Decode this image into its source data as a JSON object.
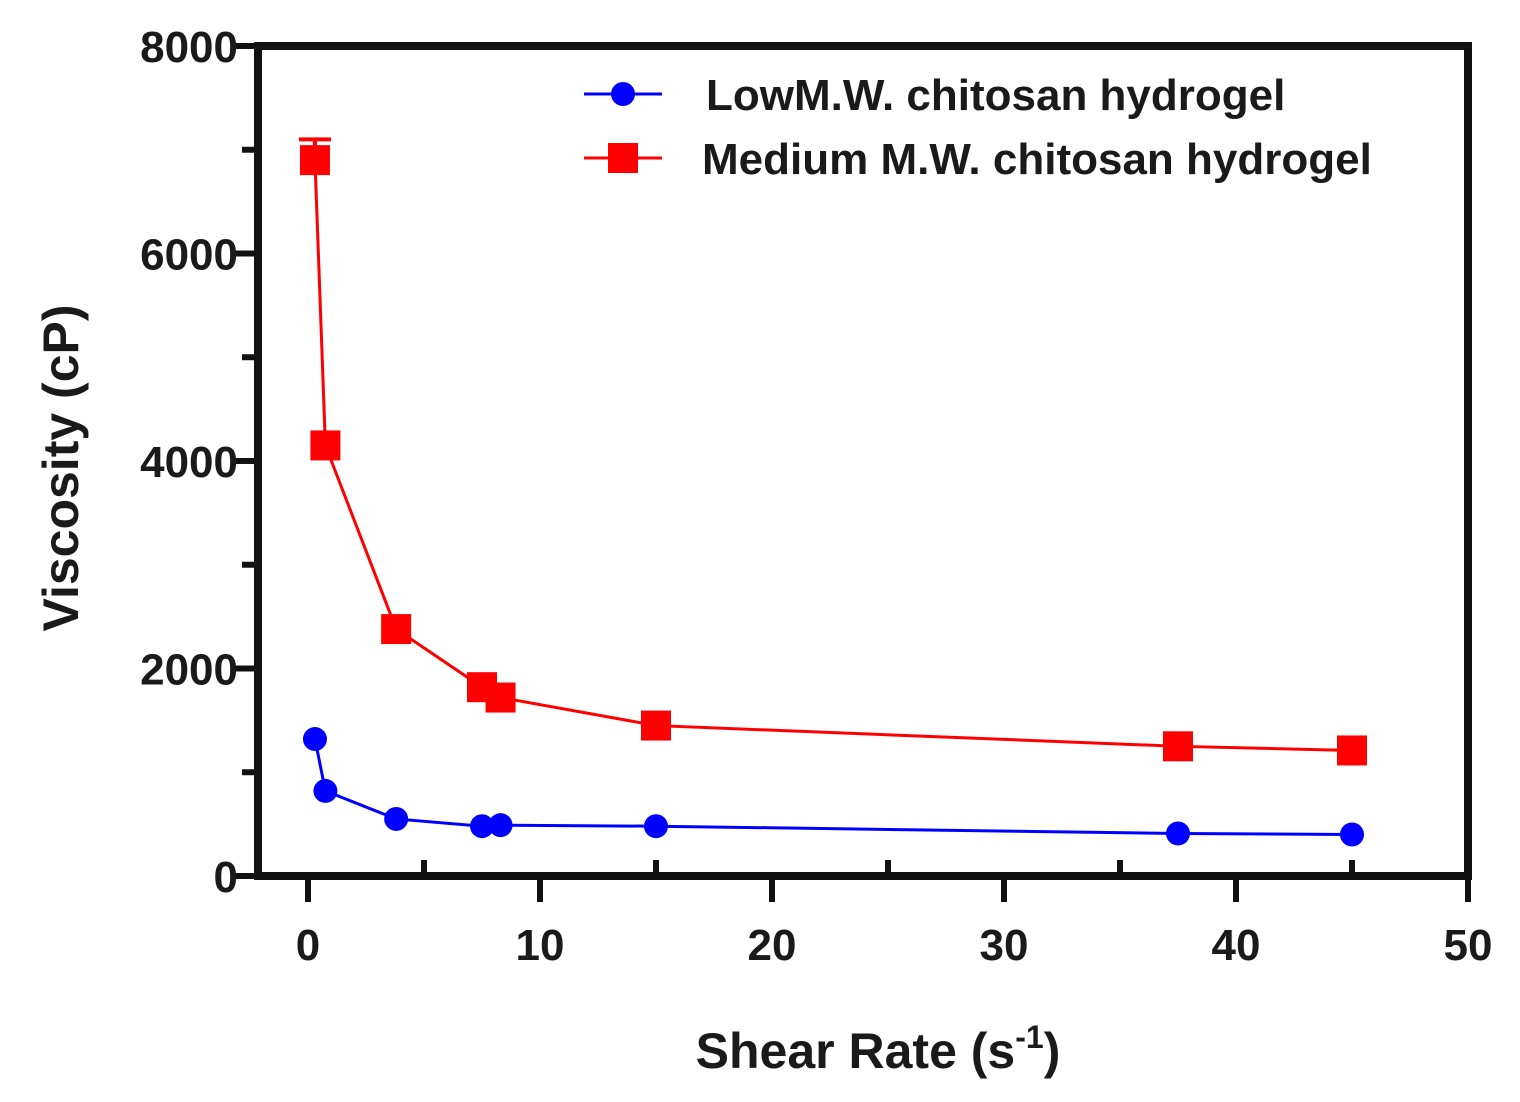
{
  "chart_data": {
    "type": "line",
    "title": "",
    "xlabel_main": "Shear Rate (s",
    "xlabel_sup": "-1",
    "xlabel_close": ")",
    "ylabel": "Viscosity (cP)",
    "xlim": [
      0,
      50
    ],
    "ylim": [
      0,
      8000
    ],
    "x_major_ticks": [
      0,
      10,
      20,
      30,
      40,
      50
    ],
    "x_minor_ticks": [
      5,
      15,
      25,
      35,
      45
    ],
    "y_major_ticks": [
      0,
      2000,
      4000,
      6000,
      8000
    ],
    "y_minor_ticks": [
      1000,
      3000,
      5000,
      7000
    ],
    "x_tick_labels": [
      "0",
      "10",
      "20",
      "30",
      "40",
      "50"
    ],
    "y_tick_labels": [
      "0",
      "2000",
      "4000",
      "6000",
      "8000"
    ],
    "legend_position": "top-right",
    "grid": false,
    "series": [
      {
        "name": "LowM.W. chitosan hydrogel",
        "color": "#0000ff",
        "marker": "circle",
        "x": [
          0.3,
          0.75,
          3.8,
          7.5,
          8.3,
          15,
          37.5,
          45
        ],
        "y": [
          1320,
          820,
          550,
          480,
          490,
          480,
          410,
          400
        ],
        "err": [
          0,
          0,
          0,
          0,
          0,
          0,
          0,
          0
        ]
      },
      {
        "name": "Medium M.W. chitosan hydrogel",
        "color": "#ff0000",
        "marker": "square",
        "x": [
          0.3,
          0.75,
          3.8,
          7.5,
          8.3,
          15,
          37.5,
          45
        ],
        "y": [
          6900,
          4150,
          2380,
          1820,
          1720,
          1450,
          1250,
          1210
        ],
        "err": [
          200,
          0,
          0,
          0,
          0,
          0,
          0,
          0
        ]
      }
    ]
  }
}
